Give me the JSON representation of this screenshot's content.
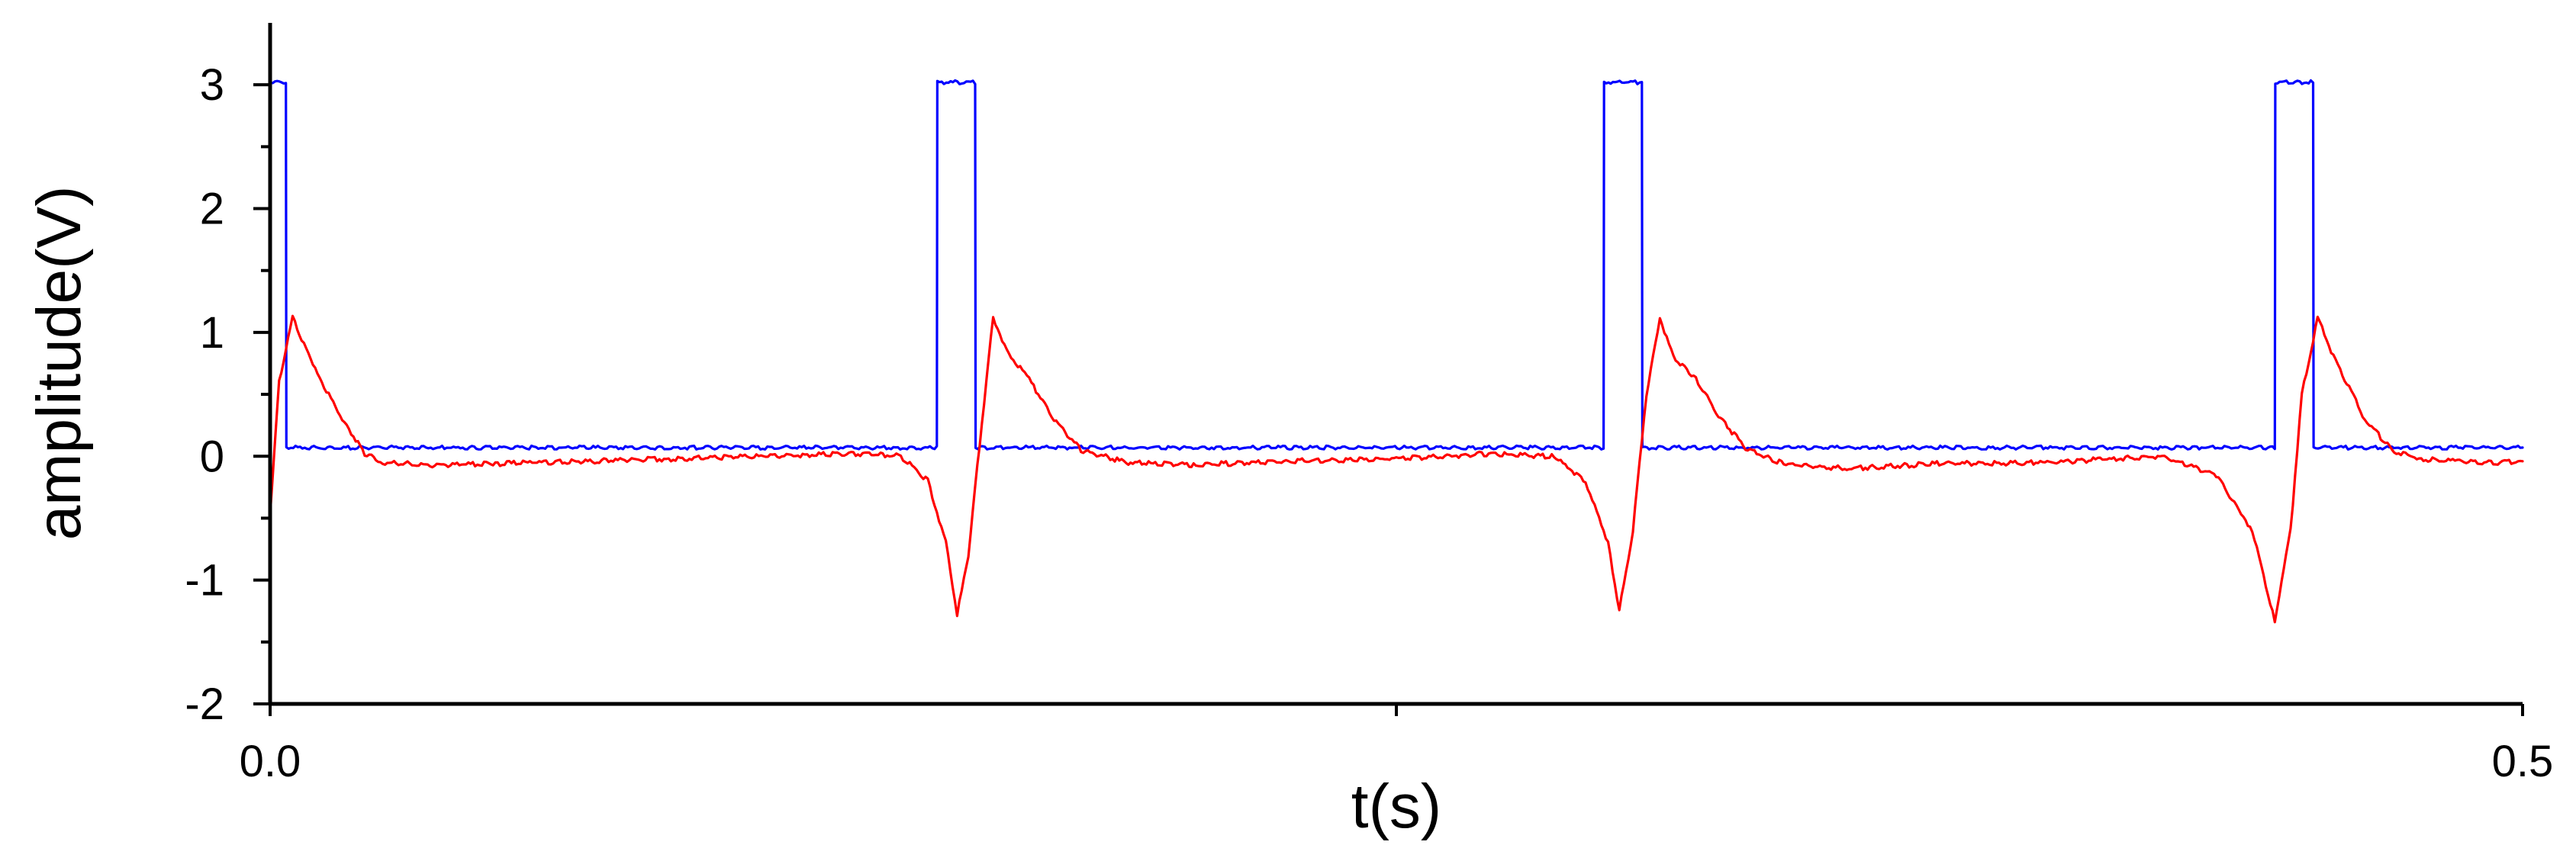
{
  "chart_data": {
    "type": "line",
    "title": "",
    "xlabel": "t(s)",
    "ylabel": "amplitude(V)",
    "xlim": [
      0,
      0.5
    ],
    "ylim": [
      -2,
      3.5
    ],
    "x_ticks": [
      0,
      0.25,
      0.5
    ],
    "x_tick_labels": [
      "0.0",
      "",
      "0.5"
    ],
    "y_ticks": [
      -2,
      -1,
      0,
      1,
      2,
      3
    ],
    "y_tick_labels": [
      "-2",
      "-1",
      "0",
      "1",
      "2",
      "3"
    ],
    "grid": false,
    "legend": "none",
    "series": [
      {
        "color": "#0000ff",
        "x": [
          0.0,
          0.0001,
          0.0035,
          0.0036,
          0.148,
          0.1481,
          0.1565,
          0.1566,
          0.296,
          0.2961,
          0.3045,
          0.3046,
          0.445,
          0.4451,
          0.4535,
          0.4536,
          0.5
        ],
        "y": [
          0.07,
          3.02,
          3.02,
          0.07,
          0.07,
          3.02,
          3.02,
          0.07,
          0.07,
          3.02,
          3.02,
          0.07,
          0.07,
          3.02,
          3.02,
          0.07,
          0.07
        ]
      },
      {
        "color": "#ff0000",
        "x": [
          0.0,
          0.002,
          0.005,
          0.01,
          0.016,
          0.021,
          0.025,
          0.035,
          0.05,
          0.07,
          0.09,
          0.11,
          0.13,
          0.14,
          0.146,
          0.15,
          0.1525,
          0.155,
          0.1575,
          0.1605,
          0.1635,
          0.168,
          0.174,
          0.18,
          0.19,
          0.205,
          0.225,
          0.25,
          0.27,
          0.285,
          0.292,
          0.297,
          0.2995,
          0.3025,
          0.3055,
          0.3085,
          0.3115,
          0.316,
          0.322,
          0.328,
          0.336,
          0.35,
          0.37,
          0.395,
          0.42,
          0.432,
          0.44,
          0.445,
          0.4485,
          0.451,
          0.4545,
          0.4575,
          0.4605,
          0.465,
          0.471,
          0.477,
          0.485,
          0.495,
          0.5
        ],
        "y": [
          -0.45,
          0.6,
          1.12,
          0.7,
          0.3,
          0.02,
          -0.05,
          -0.07,
          -0.06,
          -0.04,
          -0.02,
          0.0,
          0.02,
          0.0,
          -0.2,
          -0.7,
          -1.28,
          -0.8,
          0.1,
          1.12,
          0.85,
          0.65,
          0.3,
          0.05,
          -0.05,
          -0.07,
          -0.04,
          -0.02,
          0.02,
          0.0,
          -0.2,
          -0.7,
          -1.25,
          -0.6,
          0.5,
          1.12,
          0.8,
          0.65,
          0.3,
          0.05,
          -0.06,
          -0.1,
          -0.06,
          -0.05,
          0.0,
          -0.15,
          -0.6,
          -1.33,
          -0.6,
          0.5,
          1.12,
          0.85,
          0.62,
          0.3,
          0.05,
          -0.02,
          -0.04,
          -0.05,
          -0.04
        ]
      }
    ]
  }
}
